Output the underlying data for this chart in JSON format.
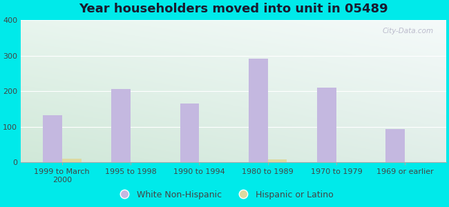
{
  "title": "Year householders moved into unit in 05489",
  "categories": [
    "1999 to March\n2000",
    "1995 to 1998",
    "1990 to 1994",
    "1980 to 1989",
    "1970 to 1979",
    "1969 or earlier"
  ],
  "white_non_hispanic": [
    133,
    207,
    165,
    291,
    211,
    93
  ],
  "hispanic_or_latino": [
    10,
    0,
    0,
    8,
    0,
    0
  ],
  "bar_color_white": "#c4b8e0",
  "bar_color_hispanic": "#ddd9a0",
  "background_outer": "#00eaea",
  "background_plot_topleft": "#d8ede0",
  "background_plot_topright": "#f0f8f8",
  "background_plot_bottom": "#e0f0e8",
  "ylim": [
    0,
    400
  ],
  "yticks": [
    0,
    100,
    200,
    300,
    400
  ],
  "bar_width": 0.28,
  "title_fontsize": 13,
  "tick_fontsize": 8,
  "legend_fontsize": 9,
  "watermark": "City-Data.com"
}
